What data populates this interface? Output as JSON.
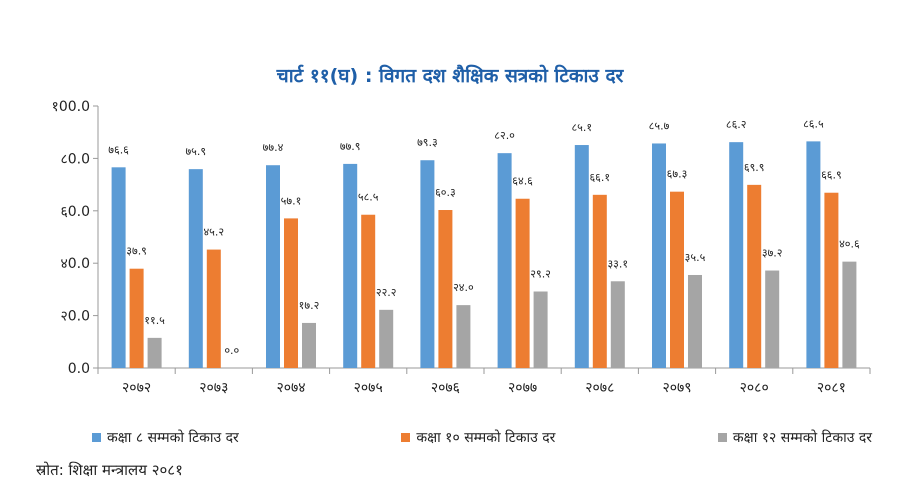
{
  "chart_data": {
    "type": "bar",
    "title": "चार्ट ११(घ) : विगत दश शैक्षिक सत्रको टिकाउ दर",
    "xlabel": "",
    "ylabel": "",
    "ylim": [
      0,
      100
    ],
    "yticks": [
      0,
      20,
      40,
      60,
      80,
      100
    ],
    "ytick_labels": [
      "0.0",
      "२0.0",
      "४0.0",
      "६0.0",
      "८0.0",
      "१00.0"
    ],
    "grid": false,
    "legend_position": "bottom",
    "categories": [
      "२०७२",
      "२०७३",
      "२०७४",
      "२०७५",
      "२०७६",
      "२०७७",
      "२०७८",
      "२०७९",
      "२०८०",
      "२०८१"
    ],
    "series": [
      {
        "name": "कक्षा ८ सम्मको टिकाउ दर",
        "color": "#5b9bd5",
        "values": [
          76.6,
          75.9,
          77.4,
          77.9,
          79.3,
          82.0,
          85.1,
          85.7,
          86.2,
          86.5
        ],
        "labels": [
          "७६.६",
          "७५.९",
          "७७.४",
          "७७.९",
          "७९.३",
          "८२.०",
          "८५.१",
          "८५.७",
          "८६.२",
          "८६.५"
        ]
      },
      {
        "name": "कक्षा १० सम्मको टिकाउ दर",
        "color": "#ed7d31",
        "values": [
          37.9,
          45.2,
          57.1,
          58.5,
          60.3,
          64.6,
          66.1,
          67.3,
          69.9,
          66.9
        ],
        "labels": [
          "३७.९",
          "४५.२",
          "५७.१",
          "५८.५",
          "६०.३",
          "६४.६",
          "६६.१",
          "६७.३",
          "६९.९",
          "६६.९"
        ]
      },
      {
        "name": "कक्षा १२ सम्मको टिकाउ दर",
        "color": "#a5a5a5",
        "values": [
          11.5,
          0.0,
          17.2,
          22.2,
          24.0,
          29.2,
          33.1,
          35.5,
          37.2,
          40.6
        ],
        "labels": [
          "११.५",
          "०.०",
          "१७.२",
          "२२.२",
          "२४.०",
          "२९.२",
          "३३.१",
          "३५.५",
          "३७.२",
          "४०.६"
        ]
      }
    ]
  },
  "source": "स्रोत: शिक्षा मन्त्रालय २०८१"
}
